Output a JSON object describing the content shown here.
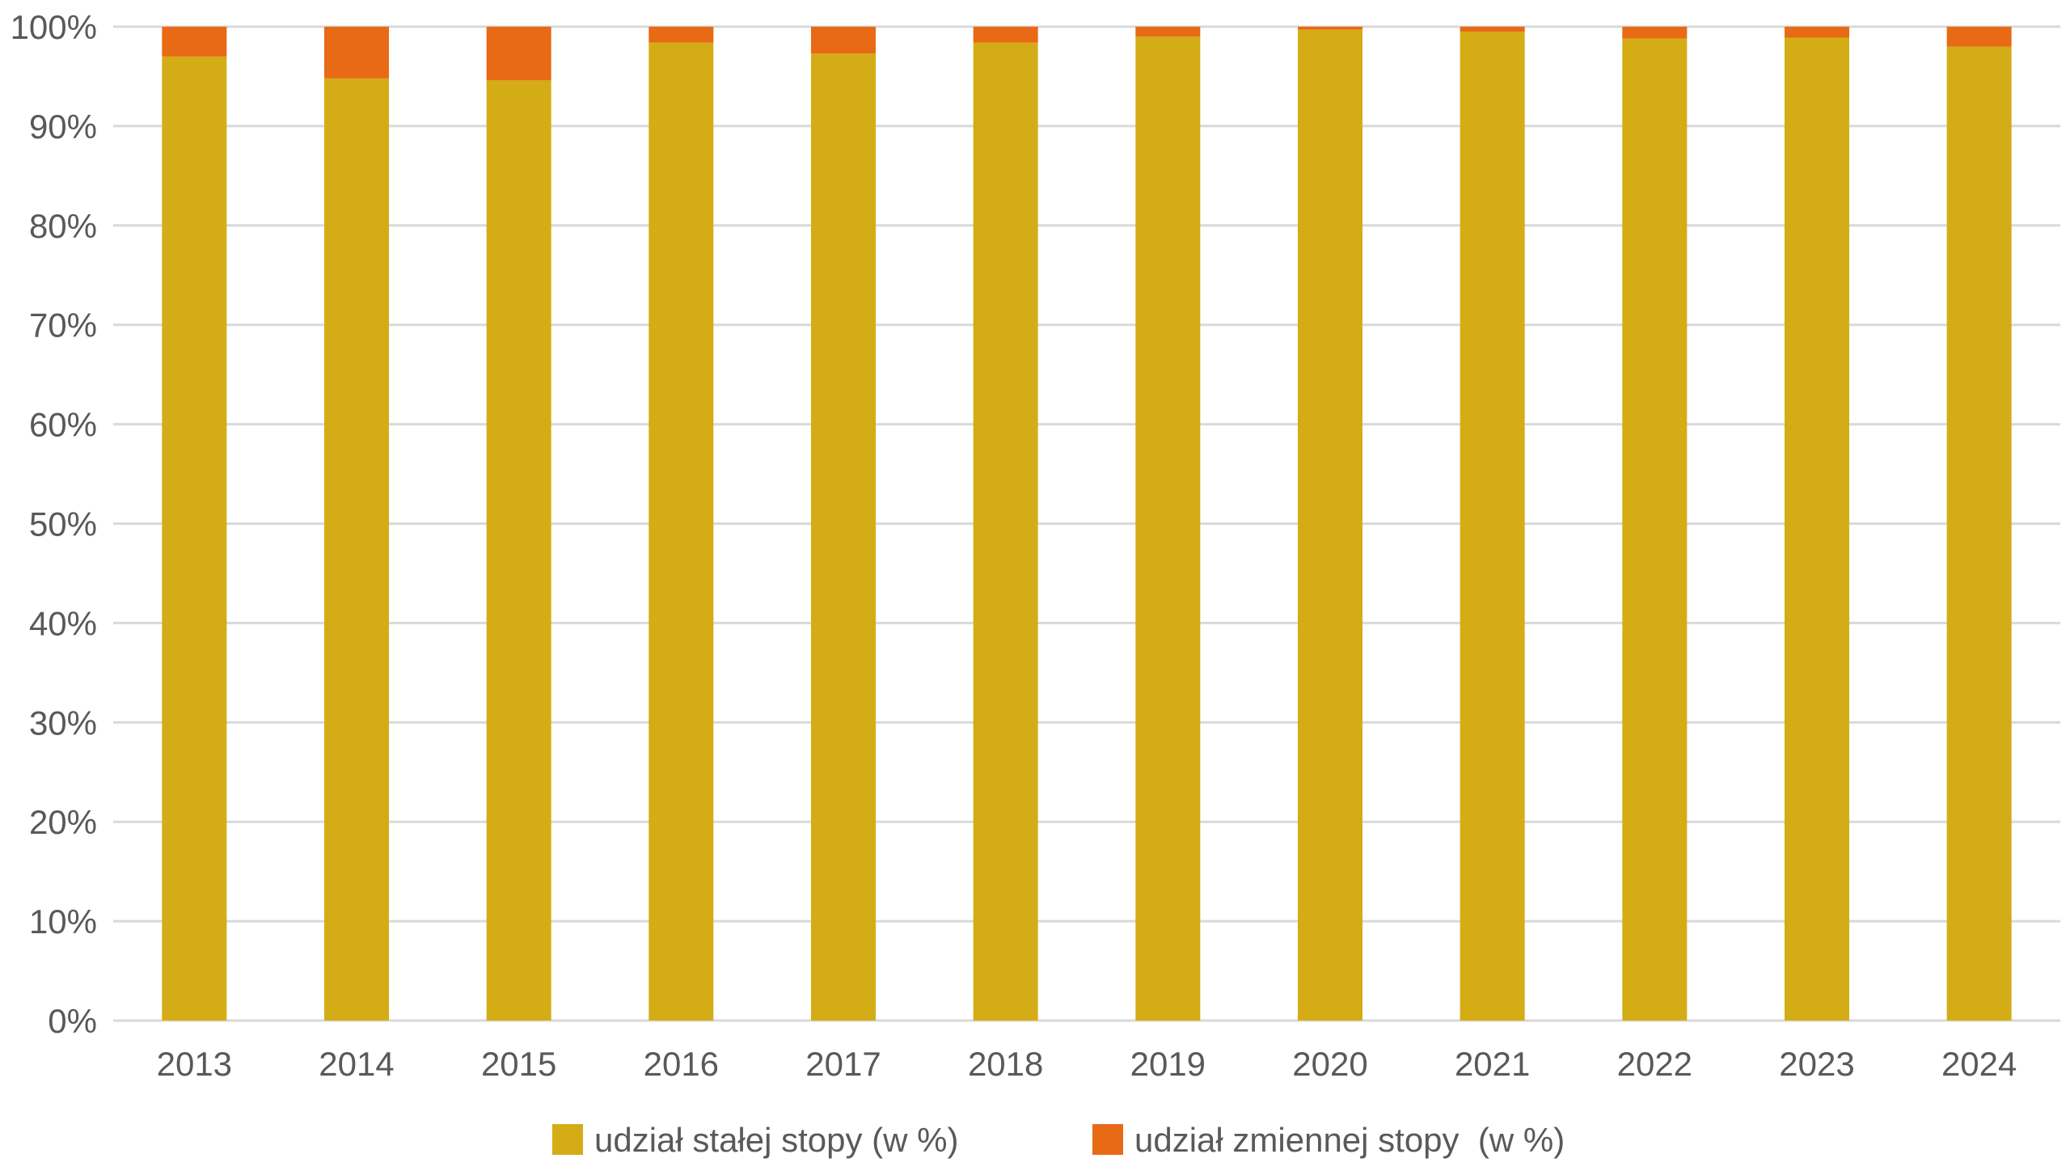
{
  "chart_data": {
    "type": "bar",
    "stacked": true,
    "categories": [
      "2013",
      "2014",
      "2015",
      "2016",
      "2017",
      "2018",
      "2019",
      "2020",
      "2021",
      "2022",
      "2023",
      "2024"
    ],
    "series": [
      {
        "name": "udział stałej stopy (w %)",
        "color": "#D4AC16",
        "values": [
          97.0,
          94.8,
          94.6,
          98.4,
          97.3,
          98.4,
          99.0,
          99.7,
          99.5,
          98.8,
          98.9,
          98.0
        ]
      },
      {
        "name": "udział zmiennej stopy  (w %)",
        "color": "#E86A14",
        "values": [
          3.0,
          5.2,
          5.4,
          1.6,
          2.7,
          1.6,
          1.0,
          0.3,
          0.5,
          1.2,
          1.1,
          2.0
        ]
      }
    ],
    "ylim": [
      0,
      100
    ],
    "yticks": [
      "0%",
      "10%",
      "20%",
      "30%",
      "40%",
      "50%",
      "60%",
      "70%",
      "80%",
      "90%",
      "100%"
    ],
    "grid": true,
    "legend_position": "bottom",
    "gridline_color": "#D9D9D9",
    "title": "",
    "xlabel": "",
    "ylabel": ""
  }
}
